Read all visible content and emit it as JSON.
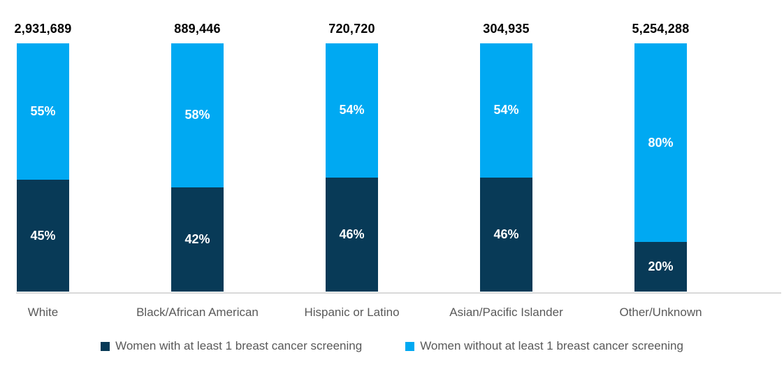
{
  "chart_data": {
    "type": "bar",
    "subtype": "stacked-100-percent",
    "title": "",
    "xlabel": "",
    "ylabel": "",
    "ylim": [
      0,
      100
    ],
    "grid": false,
    "legend_position": "bottom",
    "categories": [
      "White",
      "Black/African American",
      "Hispanic or Latino",
      "Asian/Pacific Islander",
      "Other/Unknown"
    ],
    "totals": [
      "2,931,689",
      "889,446",
      "720,720",
      "304,935",
      "5,254,288"
    ],
    "series": [
      {
        "name": "Women with at least 1 breast cancer screening",
        "color": "#083A57",
        "position": "bottom",
        "values_pct": [
          45,
          42,
          46,
          46,
          20
        ],
        "labels": [
          "45%",
          "42%",
          "46%",
          "46%",
          "20%"
        ]
      },
      {
        "name": "Women without at least 1 breast cancer screening",
        "color": "#00A9F2",
        "position": "top",
        "values_pct": [
          55,
          58,
          54,
          54,
          80
        ],
        "labels": [
          "55%",
          "58%",
          "54%",
          "54%",
          "80%"
        ]
      }
    ]
  },
  "styles": {
    "axis_line_color": "#D9D9D9",
    "category_label_color": "#595959",
    "total_label_color": "#000000",
    "percent_label_color": "#FFFFFF",
    "background_color": "#FFFFFF"
  }
}
